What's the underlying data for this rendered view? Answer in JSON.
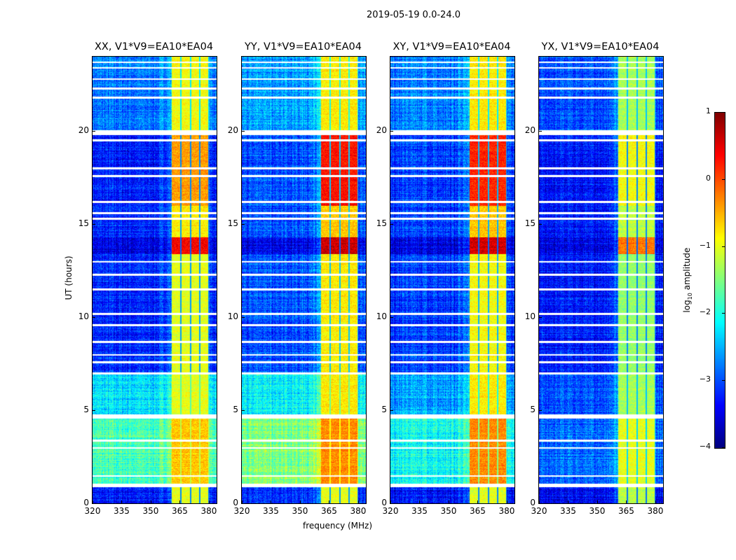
{
  "chart_data": {
    "type": "heatmap",
    "title": "2019-05-19 0.0-24.0",
    "xlabel": "frequency (MHz)",
    "ylabel": "UT (hours)",
    "xlim": [
      320,
      384
    ],
    "ylim": [
      0,
      24
    ],
    "xticks": [
      "320",
      "335",
      "350",
      "365",
      "380"
    ],
    "yticks": [
      "0",
      "5",
      "10",
      "15",
      "20"
    ],
    "xtick_values": [
      320,
      335,
      350,
      365,
      380
    ],
    "ytick_values": [
      0,
      5,
      10,
      15,
      20
    ],
    "colorbar": {
      "label": "log₁₀ amplitude",
      "label_base": "log",
      "label_sub": "10",
      "label_rest": " amplitude",
      "range": [
        -4,
        1
      ],
      "ticks": [
        "1",
        "0",
        "−1",
        "−2",
        "−3",
        "−4"
      ],
      "tick_values": [
        1,
        0,
        -1,
        -2,
        -3,
        -4
      ],
      "colormap": "jet"
    },
    "band_MHz": [
      361,
      380
    ],
    "channel_edges_MHz": [
      365.5,
      370.5,
      375.3,
      380
    ],
    "blank_UT_rows": [
      1.0,
      1.5,
      3.0,
      3.4,
      4.7,
      7.0,
      7.6,
      8.0,
      8.7,
      9.6,
      10.2,
      11.5,
      12.3,
      13.0,
      15.3,
      15.6,
      16.2,
      17.6,
      18.0,
      19.5,
      20.0,
      21.8,
      22.3,
      22.8,
      23.4,
      23.7
    ],
    "panels": [
      {
        "title": "XX, V1*V9=EA10*EA04",
        "segments": [
          {
            "ut": [
              0,
              0.9
            ],
            "background": -3.3,
            "band": -1.0
          },
          {
            "ut": [
              1.1,
              4.6
            ],
            "background": -1.8,
            "band": -0.6
          },
          {
            "ut": [
              4.8,
              7.0
            ],
            "background": -2.3,
            "band": -1.0
          },
          {
            "ut": [
              7.0,
              13.4
            ],
            "background": -3.2,
            "band": -1.0
          },
          {
            "ut": [
              13.4,
              14.3
            ],
            "background": -3.5,
            "band": 0.4
          },
          {
            "ut": [
              14.3,
              16.0
            ],
            "background": -3.2,
            "band": -0.8
          },
          {
            "ut": [
              16.0,
              19.8
            ],
            "background": -3.3,
            "band": -0.4
          },
          {
            "ut": [
              20.0,
              24.0
            ],
            "background": -2.8,
            "band": -0.9
          }
        ]
      },
      {
        "title": "YY, V1*V9=EA10*EA04",
        "segments": [
          {
            "ut": [
              0,
              0.9
            ],
            "background": -3.2,
            "band": -1.0
          },
          {
            "ut": [
              1.1,
              4.6
            ],
            "background": -1.5,
            "band": -0.3
          },
          {
            "ut": [
              4.8,
              7.0
            ],
            "background": -2.2,
            "band": -0.8
          },
          {
            "ut": [
              7.0,
              13.4
            ],
            "background": -3.0,
            "band": -0.8
          },
          {
            "ut": [
              13.4,
              14.3
            ],
            "background": -3.5,
            "band": 0.6
          },
          {
            "ut": [
              14.3,
              16.0
            ],
            "background": -3.0,
            "band": -0.6
          },
          {
            "ut": [
              16.0,
              19.8
            ],
            "background": -3.0,
            "band": 0.3
          },
          {
            "ut": [
              20.0,
              24.0
            ],
            "background": -2.6,
            "band": -0.8
          }
        ]
      },
      {
        "title": "XY, V1*V9=EA10*EA04",
        "segments": [
          {
            "ut": [
              0,
              0.9
            ],
            "background": -3.3,
            "band": -1.0
          },
          {
            "ut": [
              1.1,
              4.6
            ],
            "background": -2.1,
            "band": -0.3
          },
          {
            "ut": [
              4.8,
              7.0
            ],
            "background": -2.6,
            "band": -0.8
          },
          {
            "ut": [
              7.0,
              13.4
            ],
            "background": -3.1,
            "band": -0.9
          },
          {
            "ut": [
              13.4,
              14.3
            ],
            "background": -3.5,
            "band": 0.6
          },
          {
            "ut": [
              14.3,
              16.0
            ],
            "background": -3.1,
            "band": -0.6
          },
          {
            "ut": [
              16.0,
              19.8
            ],
            "background": -3.1,
            "band": 0.2
          },
          {
            "ut": [
              20.0,
              24.0
            ],
            "background": -2.8,
            "band": -0.8
          }
        ]
      },
      {
        "title": "YX, V1*V9=EA10*EA04",
        "segments": [
          {
            "ut": [
              0,
              0.9
            ],
            "background": -3.4,
            "band": -1.2
          },
          {
            "ut": [
              1.1,
              4.6
            ],
            "background": -2.9,
            "band": -1.0
          },
          {
            "ut": [
              4.8,
              7.0
            ],
            "background": -3.0,
            "band": -1.3
          },
          {
            "ut": [
              7.0,
              13.4
            ],
            "background": -3.3,
            "band": -1.4
          },
          {
            "ut": [
              13.4,
              14.3
            ],
            "background": -3.5,
            "band": -0.2
          },
          {
            "ut": [
              14.3,
              16.0
            ],
            "background": -3.3,
            "band": -1.2
          },
          {
            "ut": [
              16.0,
              19.8
            ],
            "background": -3.3,
            "band": -0.9
          },
          {
            "ut": [
              20.0,
              24.0
            ],
            "background": -3.0,
            "band": -1.3
          }
        ]
      }
    ]
  }
}
